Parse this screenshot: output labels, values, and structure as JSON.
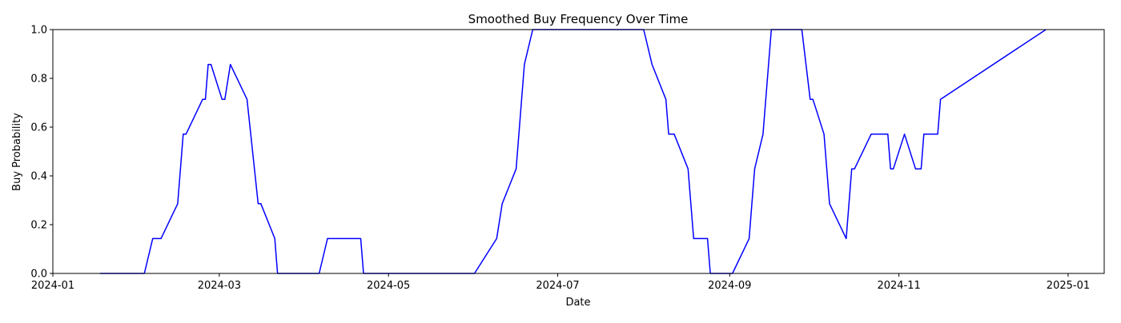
{
  "chart_data": {
    "type": "line",
    "title": "Smoothed Buy Frequency Over Time",
    "xlabel": "Date",
    "ylabel": "Buy Probability",
    "xlim": [
      "2024-01-01",
      "2025-01-14"
    ],
    "ylim": [
      0,
      1
    ],
    "grid": false,
    "line_color": "#0000ff",
    "x_ticks": [
      "2024-01",
      "2024-03",
      "2024-05",
      "2024-07",
      "2024-09",
      "2024-11",
      "2025-01"
    ],
    "y_ticks": [
      "0.0",
      "0.2",
      "0.4",
      "0.6",
      "0.8",
      "1.0"
    ],
    "x": [
      "2024-01-18",
      "2024-02-03",
      "2024-02-06",
      "2024-02-09",
      "2024-02-15",
      "2024-02-17",
      "2024-02-18",
      "2024-02-24",
      "2024-02-25",
      "2024-02-26",
      "2024-02-27",
      "2024-03-02",
      "2024-03-03",
      "2024-03-05",
      "2024-03-11",
      "2024-03-15",
      "2024-03-16",
      "2024-03-21",
      "2024-03-22",
      "2024-04-06",
      "2024-04-09",
      "2024-04-21",
      "2024-04-22",
      "2024-06-01",
      "2024-06-09",
      "2024-06-11",
      "2024-06-16",
      "2024-06-19",
      "2024-06-22",
      "2024-08-01",
      "2024-08-04",
      "2024-08-09",
      "2024-08-10",
      "2024-08-12",
      "2024-08-17",
      "2024-08-19",
      "2024-08-24",
      "2024-08-25",
      "2024-09-02",
      "2024-09-08",
      "2024-09-09",
      "2024-09-10",
      "2024-09-13",
      "2024-09-16",
      "2024-09-27",
      "2024-09-30",
      "2024-10-01",
      "2024-10-05",
      "2024-10-07",
      "2024-10-13",
      "2024-10-15",
      "2024-10-16",
      "2024-10-22",
      "2024-10-28",
      "2024-10-29",
      "2024-10-30",
      "2024-11-03",
      "2024-11-07",
      "2024-11-09",
      "2024-11-10",
      "2024-11-15",
      "2024-11-16",
      "2024-12-24"
    ],
    "y": [
      0.0,
      0.0,
      0.143,
      0.143,
      0.286,
      0.571,
      0.571,
      0.714,
      0.714,
      0.857,
      0.857,
      0.714,
      0.714,
      0.857,
      0.714,
      0.286,
      0.286,
      0.143,
      0.0,
      0.0,
      0.143,
      0.143,
      0.0,
      0.0,
      0.143,
      0.286,
      0.429,
      0.857,
      1.0,
      1.0,
      0.857,
      0.714,
      0.571,
      0.571,
      0.429,
      0.143,
      0.143,
      0.0,
      0.0,
      0.143,
      0.286,
      0.429,
      0.571,
      1.0,
      1.0,
      0.714,
      0.714,
      0.571,
      0.286,
      0.143,
      0.429,
      0.429,
      0.571,
      0.571,
      0.429,
      0.429,
      0.571,
      0.429,
      0.429,
      0.571,
      0.571,
      0.714,
      1.0
    ]
  }
}
